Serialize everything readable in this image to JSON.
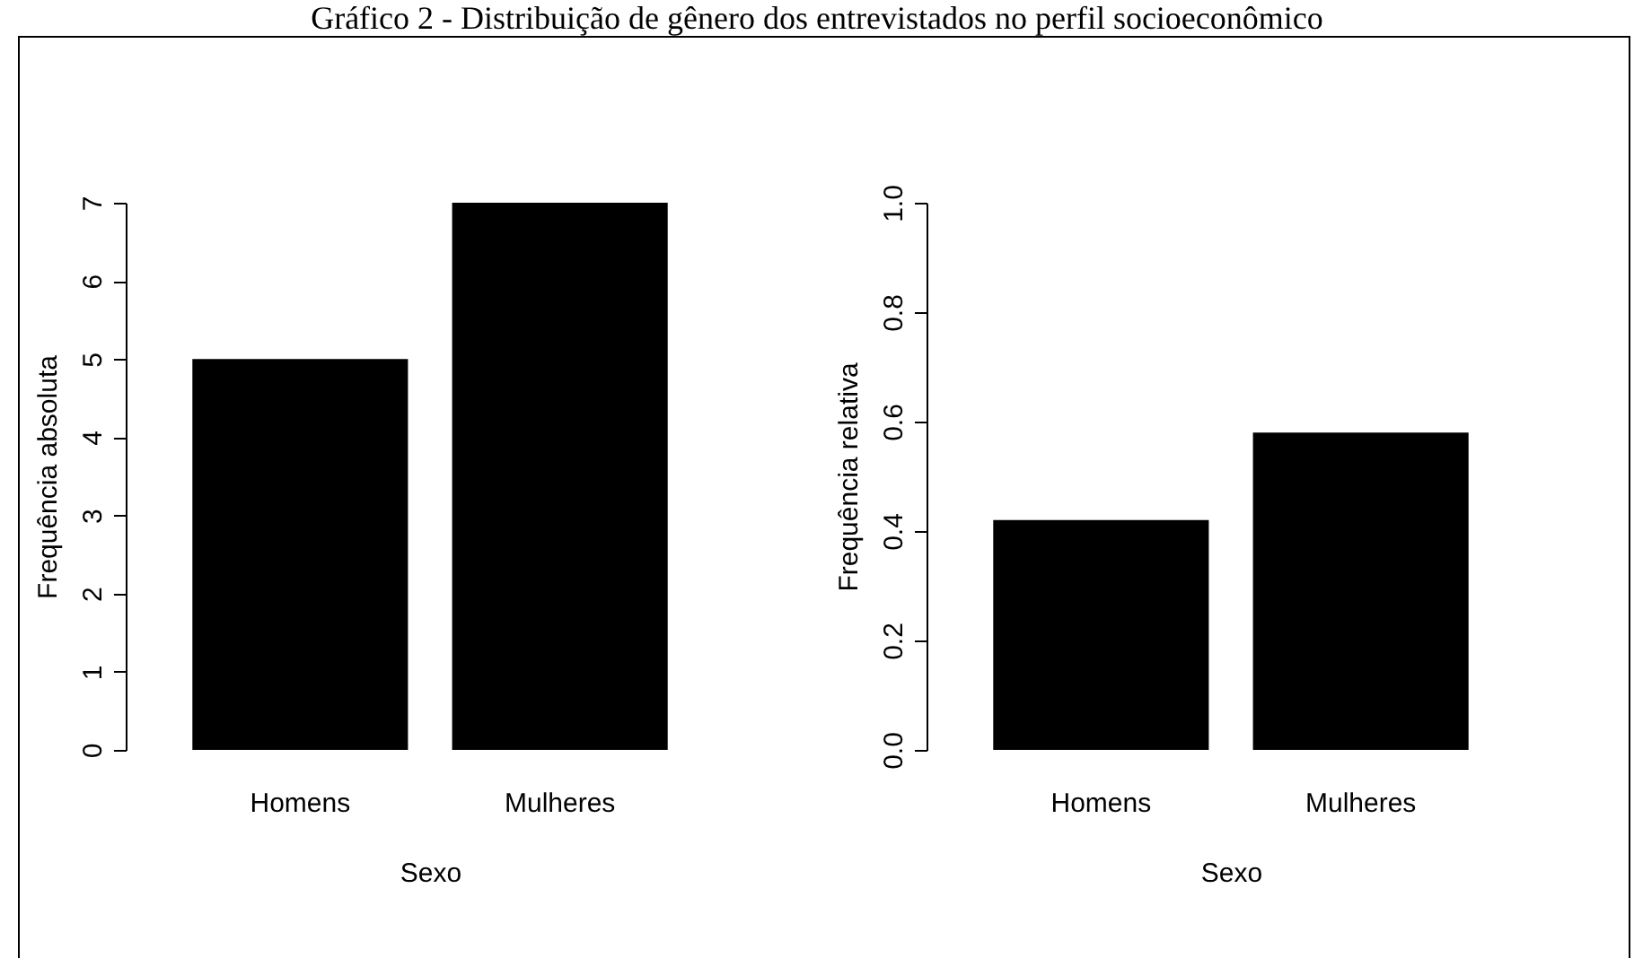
{
  "chart_data": [
    {
      "type": "bar",
      "title": "Gráfico 2 - Distribuição de gênero dos entrevistados no perfil socioeconômico",
      "xlabel": "Sexo",
      "ylabel": "Frequência absoluta",
      "categories": [
        "Homens",
        "Mulheres"
      ],
      "values": [
        5,
        7
      ],
      "color": "#000000",
      "ylim": [
        0,
        7
      ],
      "yticks": [
        0,
        1,
        2,
        3,
        4,
        5,
        6,
        7
      ],
      "grid": false
    },
    {
      "type": "bar",
      "xlabel": "Sexo",
      "ylabel": "Frequência relativa",
      "categories": [
        "Homens",
        "Mulheres"
      ],
      "values": [
        0.42,
        0.58
      ],
      "color": "#000000",
      "ylim": [
        0,
        1
      ],
      "yticks": [
        {
          "value": 0,
          "label": "0.0"
        },
        {
          "value": 0.2,
          "label": "0.2"
        },
        {
          "value": 0.4,
          "label": "0.4"
        },
        {
          "value": 0.6,
          "label": "0.6"
        },
        {
          "value": 0.8,
          "label": "0.8"
        },
        {
          "value": 1,
          "label": "1.0"
        }
      ],
      "grid": false
    }
  ]
}
